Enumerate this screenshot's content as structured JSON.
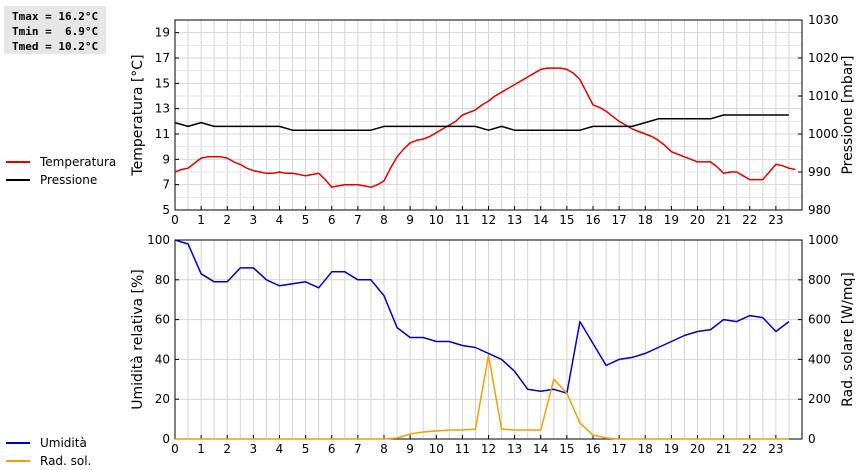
{
  "stats": {
    "tmax": "Tmax = 16.2°C",
    "tmin": "Tmin =  6.9°C",
    "tmed": "Tmed = 10.2°C"
  },
  "colors": {
    "temperature": "#dd0000",
    "pressure": "#000000",
    "humidity": "#0000bb",
    "radiation": "#f0a000",
    "grid": "#d4d4d4"
  },
  "chart_data": [
    {
      "type": "line",
      "x_ticks": [
        "0",
        "1",
        "2",
        "3",
        "4",
        "5",
        "6",
        "7",
        "8",
        "9",
        "10",
        "11",
        "12",
        "13",
        "14",
        "15",
        "16",
        "17",
        "18",
        "19",
        "20",
        "21",
        "22",
        "23"
      ],
      "xlim": [
        0,
        24
      ],
      "ylabel": "Temperatura [°C]",
      "y2label": "Pressione [mbar]",
      "ylim": [
        5,
        20
      ],
      "y_ticks": [
        "5",
        "7",
        "9",
        "11",
        "13",
        "15",
        "17",
        "19"
      ],
      "y2lim": [
        980,
        1030
      ],
      "y2_ticks": [
        "980",
        "990",
        "1000",
        "1010",
        "1020",
        "1030"
      ],
      "legend_position": "left-outside",
      "grid": true,
      "series": [
        {
          "name": "Temperatura",
          "axis": "left",
          "x": [
            0,
            0.25,
            0.5,
            0.75,
            1,
            1.25,
            1.5,
            1.75,
            2,
            2.25,
            2.5,
            2.75,
            3,
            3.25,
            3.5,
            3.75,
            4,
            4.25,
            4.5,
            4.75,
            5,
            5.25,
            5.5,
            5.75,
            6,
            6.25,
            6.5,
            6.75,
            7,
            7.25,
            7.5,
            7.75,
            8,
            8.25,
            8.5,
            8.75,
            9,
            9.25,
            9.5,
            9.75,
            10,
            10.25,
            10.5,
            10.75,
            11,
            11.25,
            11.5,
            11.75,
            12,
            12.25,
            12.5,
            12.75,
            13,
            13.25,
            13.5,
            13.75,
            14,
            14.25,
            14.5,
            14.75,
            15,
            15.25,
            15.5,
            15.75,
            16,
            16.25,
            16.5,
            16.75,
            17,
            17.25,
            17.5,
            17.75,
            18,
            18.25,
            18.5,
            18.75,
            19,
            19.25,
            19.5,
            19.75,
            20,
            20.25,
            20.5,
            20.75,
            21,
            21.25,
            21.5,
            21.75,
            22,
            22.25,
            22.5,
            22.75,
            23,
            23.25,
            23.5,
            23.75
          ],
          "values": [
            8.0,
            8.2,
            8.3,
            8.7,
            9.1,
            9.2,
            9.2,
            9.2,
            9.1,
            8.8,
            8.6,
            8.3,
            8.1,
            8.0,
            7.9,
            7.9,
            8.0,
            7.9,
            7.9,
            7.8,
            7.7,
            7.8,
            7.9,
            7.4,
            6.8,
            6.9,
            7.0,
            7.0,
            7.0,
            6.9,
            6.8,
            7.0,
            7.3,
            8.3,
            9.2,
            9.8,
            10.3,
            10.5,
            10.6,
            10.8,
            11.1,
            11.4,
            11.7,
            12.0,
            12.5,
            12.7,
            12.9,
            13.3,
            13.6,
            14.0,
            14.3,
            14.6,
            14.9,
            15.2,
            15.5,
            15.8,
            16.1,
            16.2,
            16.2,
            16.2,
            16.1,
            15.8,
            15.3,
            14.3,
            13.3,
            13.1,
            12.8,
            12.4,
            12.0,
            11.7,
            11.4,
            11.2,
            11.0,
            10.8,
            10.5,
            10.1,
            9.6,
            9.4,
            9.2,
            9.0,
            8.8,
            8.8,
            8.8,
            8.4,
            7.9,
            8.0,
            8.0,
            7.7,
            7.4,
            7.4,
            7.4,
            8.0,
            8.6,
            8.5,
            8.3,
            8.2
          ]
        },
        {
          "name": "Pressione",
          "axis": "right",
          "x": [
            0,
            0.5,
            1,
            1.5,
            2,
            2.5,
            3,
            3.5,
            4,
            4.5,
            5,
            5.5,
            6,
            6.5,
            7,
            7.5,
            8,
            8.5,
            9,
            9.5,
            10,
            10.5,
            11,
            11.5,
            12,
            12.5,
            13,
            13.5,
            14,
            14.5,
            15,
            15.5,
            16,
            16.5,
            17,
            17.5,
            18,
            18.5,
            19,
            19.5,
            20,
            20.5,
            21,
            21.5,
            22,
            22.5,
            23,
            23.5
          ],
          "values": [
            1003,
            1002,
            1003,
            1002,
            1002,
            1002,
            1002,
            1002,
            1002,
            1001,
            1001,
            1001,
            1001,
            1001,
            1001,
            1001,
            1002,
            1002,
            1002,
            1002,
            1002,
            1002,
            1002,
            1002,
            1001,
            1002,
            1001,
            1001,
            1001,
            1001,
            1001,
            1001,
            1002,
            1002,
            1002,
            1002,
            1003,
            1004,
            1004,
            1004,
            1004,
            1004,
            1005,
            1005,
            1005,
            1005,
            1005,
            1005
          ]
        }
      ]
    },
    {
      "type": "line",
      "x_ticks": [
        "0",
        "1",
        "2",
        "3",
        "4",
        "5",
        "6",
        "7",
        "8",
        "9",
        "10",
        "11",
        "12",
        "13",
        "14",
        "15",
        "16",
        "17",
        "18",
        "19",
        "20",
        "21",
        "22",
        "23"
      ],
      "xlim": [
        0,
        24
      ],
      "ylabel": "Umidità relativa [%]",
      "y2label": "Rad. solare [W/mq]",
      "ylim": [
        0,
        100
      ],
      "y_ticks": [
        "0",
        "20",
        "40",
        "60",
        "80",
        "100"
      ],
      "y2lim": [
        0,
        1000
      ],
      "y2_ticks": [
        "0",
        "200",
        "400",
        "600",
        "800",
        "1000"
      ],
      "legend_position": "left-outside",
      "grid": true,
      "series": [
        {
          "name": "Umidità",
          "axis": "left",
          "x": [
            0,
            0.5,
            1,
            1.5,
            2,
            2.5,
            3,
            3.5,
            4,
            4.5,
            5,
            5.5,
            6,
            6.5,
            7,
            7.5,
            8,
            8.5,
            9,
            9.5,
            10,
            10.5,
            11,
            11.5,
            12,
            12.5,
            13,
            13.5,
            14,
            14.5,
            15,
            15.5,
            16,
            16.5,
            17,
            17.5,
            18,
            18.5,
            19,
            19.5,
            20,
            20.5,
            21,
            21.5,
            22,
            22.5,
            23,
            23.5
          ],
          "values": [
            100,
            98,
            83,
            79,
            79,
            86,
            86,
            80,
            77,
            78,
            79,
            76,
            84,
            84,
            80,
            80,
            72,
            56,
            51,
            51,
            49,
            49,
            47,
            46,
            43,
            40,
            34,
            25,
            24,
            25,
            23,
            59,
            48,
            37,
            40,
            41,
            43,
            46,
            49,
            52,
            54,
            55,
            60,
            59,
            62,
            61,
            54,
            59
          ]
        },
        {
          "name": "Rad. sol.",
          "axis": "right",
          "x": [
            0,
            1,
            2,
            3,
            4,
            5,
            6,
            7,
            8,
            8.5,
            9,
            9.5,
            10,
            10.5,
            11,
            11.5,
            12,
            12.5,
            13,
            13.5,
            14,
            14.5,
            15,
            15.5,
            16,
            16.5,
            17,
            18,
            19,
            20,
            21,
            22,
            23,
            23.5
          ],
          "values": [
            0,
            0,
            0,
            0,
            0,
            0,
            0,
            0,
            0,
            5,
            25,
            35,
            40,
            45,
            45,
            50,
            420,
            50,
            45,
            45,
            45,
            300,
            230,
            80,
            20,
            5,
            0,
            0,
            0,
            0,
            0,
            0,
            0,
            0
          ]
        }
      ]
    }
  ]
}
